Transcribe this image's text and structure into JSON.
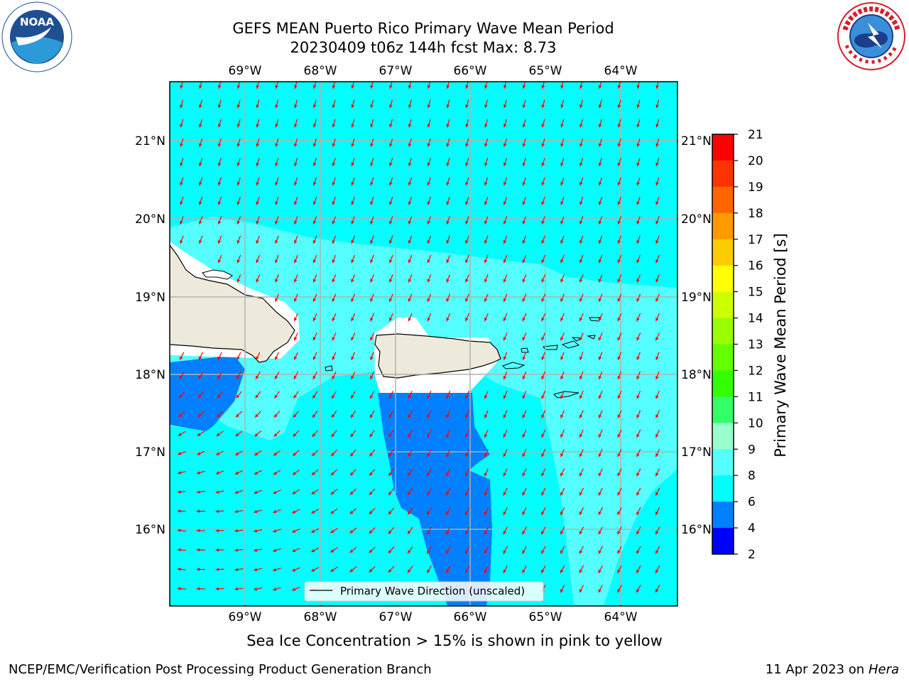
{
  "title": {
    "line1": "GEFS MEAN Puerto Rico Primary Wave Mean Period",
    "line2": "20230409 t06z 144h fcst   Max: 8.73"
  },
  "logos": {
    "left": {
      "icon": "noaa-logo-icon",
      "text": "NOAA",
      "ring_text": "NATIONAL OCEANIC AND ATMOSPHERIC ADMINISTRATION · U.S. DEPARTMENT OF COMMERCE"
    },
    "right": {
      "icon": "national-weather-service-logo-icon",
      "ring_text": "NATIONAL WEATHER SERVICE"
    }
  },
  "map": {
    "lon_labels": [
      "69°W",
      "68°W",
      "67°W",
      "66°W",
      "65°W",
      "64°W"
    ],
    "lat_labels": [
      "21°N",
      "20°N",
      "19°N",
      "18°N",
      "17°N",
      "16°N"
    ],
    "legend_label": "Primary Wave Direction (unscaled)",
    "arrow_color": "#ff0000",
    "land_color": "#eeeadb",
    "colors": {
      "period_6_8": "#00ffff",
      "period_8_9": "#55ffff",
      "period_4_6": "#0080ff"
    }
  },
  "colorbar": {
    "label": "Primary Wave Mean Period [s]",
    "ticks": [
      "21",
      "20",
      "19",
      "18",
      "17",
      "16",
      "15",
      "14",
      "13",
      "12",
      "11",
      "10",
      "9",
      "8",
      "6",
      "4",
      "2"
    ],
    "colors": [
      "#ff0000",
      "#ff3300",
      "#ff6600",
      "#ff9900",
      "#ffcc00",
      "#ffff00",
      "#ccff00",
      "#99ff00",
      "#66ff00",
      "#33ff00",
      "#33ff66",
      "#99ffcc",
      "#55ffff",
      "#00ffff",
      "#0080ff",
      "#0000ff"
    ]
  },
  "notes": {
    "sea_ice": "Sea Ice Concentration > 15% is shown in pink to yellow"
  },
  "footer": {
    "left": "NCEP/EMC/Verification Post Processing Product Generation Branch",
    "right_prefix": "11 Apr 2023 on ",
    "right_machine": "Hera"
  }
}
